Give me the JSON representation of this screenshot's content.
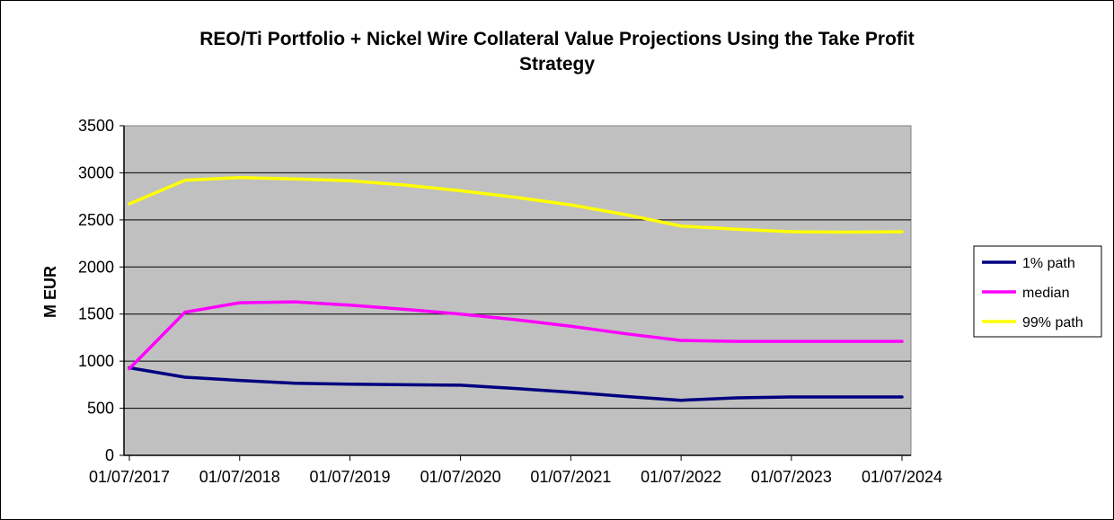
{
  "chart_data": {
    "type": "line",
    "title_lines": [
      "REO/Ti Portfolio + Nickel Wire Collateral Value Projections Using the Take Profit",
      "Strategy"
    ],
    "xlabel": "",
    "ylabel": "M EUR",
    "ylim": [
      0,
      3500
    ],
    "yticks": [
      0,
      500,
      1000,
      1500,
      2000,
      2500,
      3000,
      3500
    ],
    "xticks": [
      "01/07/2017",
      "01/07/2018",
      "01/07/2019",
      "01/07/2020",
      "01/07/2021",
      "01/07/2022",
      "01/07/2023",
      "01/07/2024"
    ],
    "x": [
      "01/07/2017",
      "01/01/2018",
      "01/07/2018",
      "01/01/2019",
      "01/07/2019",
      "01/01/2020",
      "01/07/2020",
      "01/01/2021",
      "01/07/2021",
      "01/01/2022",
      "01/07/2022",
      "01/01/2023",
      "01/07/2023",
      "01/01/2024",
      "01/07/2024"
    ],
    "series": [
      {
        "name": "1% path",
        "color": "#000080",
        "values": [
          930,
          830,
          795,
          765,
          755,
          750,
          745,
          710,
          670,
          625,
          585,
          610,
          620,
          620,
          620
        ]
      },
      {
        "name": "median",
        "color": "#ff00ff",
        "values": [
          920,
          1520,
          1620,
          1630,
          1595,
          1550,
          1500,
          1440,
          1370,
          1290,
          1220,
          1210,
          1210,
          1210,
          1210
        ]
      },
      {
        "name": "99% path",
        "color": "#ffff00",
        "values": [
          2670,
          2920,
          2950,
          2935,
          2915,
          2870,
          2810,
          2740,
          2660,
          2555,
          2435,
          2400,
          2375,
          2370,
          2375
        ]
      }
    ],
    "grid": true,
    "legend_position": "right",
    "plot_background": "#c0c0c0"
  }
}
